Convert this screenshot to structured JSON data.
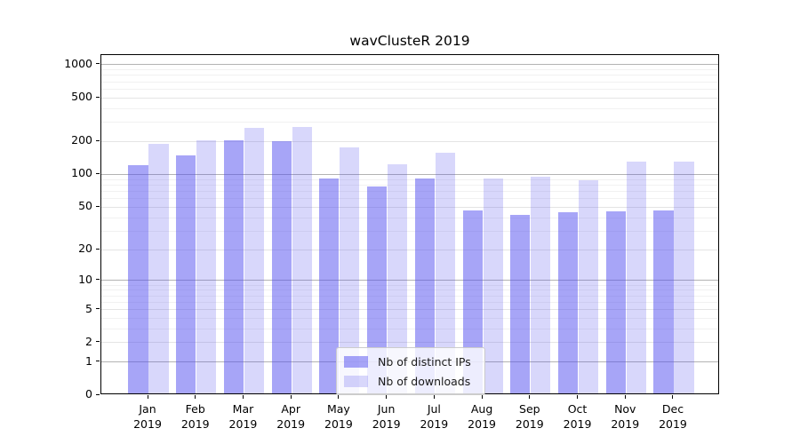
{
  "figure": {
    "title": "wavClusteR 2019",
    "background": "#ffffff"
  },
  "chart_data": {
    "type": "bar",
    "title": "wavClusteR 2019",
    "xlabel": "",
    "ylabel": "",
    "yscale": "log10(value+1), 0 at baseline",
    "grid": true,
    "legend_position": "lower center, inside plot",
    "categories": [
      "Jan\n2019",
      "Feb\n2019",
      "Mar\n2019",
      "Apr\n2019",
      "May\n2019",
      "Jun\n2019",
      "Jul\n2019",
      "Aug\n2019",
      "Sep\n2019",
      "Oct\n2019",
      "Nov\n2019",
      "Dec\n2019"
    ],
    "series": [
      {
        "name": "Nb of distinct IPs",
        "color": "rgba(79,75,239,0.5)",
        "values": [
          118,
          143,
          199,
          195,
          89,
          75,
          88,
          45,
          41,
          43,
          44,
          45
        ]
      },
      {
        "name": "Nb of downloads",
        "color": "rgba(79,75,239,0.22)",
        "values": [
          185,
          197,
          257,
          262,
          171,
          119,
          153,
          88,
          92,
          85,
          126,
          126
        ]
      }
    ],
    "y_ticks": [
      0,
      1,
      2,
      5,
      10,
      20,
      50,
      100,
      200,
      500,
      1000
    ],
    "y_tick_labels": [
      "0",
      "1",
      "2",
      "5",
      "10",
      "20",
      "50",
      "100",
      "200",
      "500",
      "1000"
    ],
    "y_major_grid_values": [
      1,
      10,
      100,
      1000
    ],
    "y_labeled_grid_values": [
      2,
      5,
      20,
      50,
      200,
      500
    ],
    "y_minor_grid_values": [
      3,
      4,
      6,
      7,
      8,
      9,
      30,
      40,
      60,
      70,
      80,
      90,
      300,
      400,
      600,
      700,
      800,
      900
    ]
  },
  "colors": {
    "bar_distinct_ips": "rgba(79,75,239,0.5)",
    "bar_downloads": "rgba(79,75,239,0.22)",
    "major_grid": "#b3b3b3",
    "labeled_grid": "#e4e4e4",
    "minor_grid": "#f1f1f1",
    "spine": "#000000",
    "text": "#000000",
    "legend_border": "#cccccc",
    "legend_bg": "rgba(255,255,255,0.8)"
  }
}
